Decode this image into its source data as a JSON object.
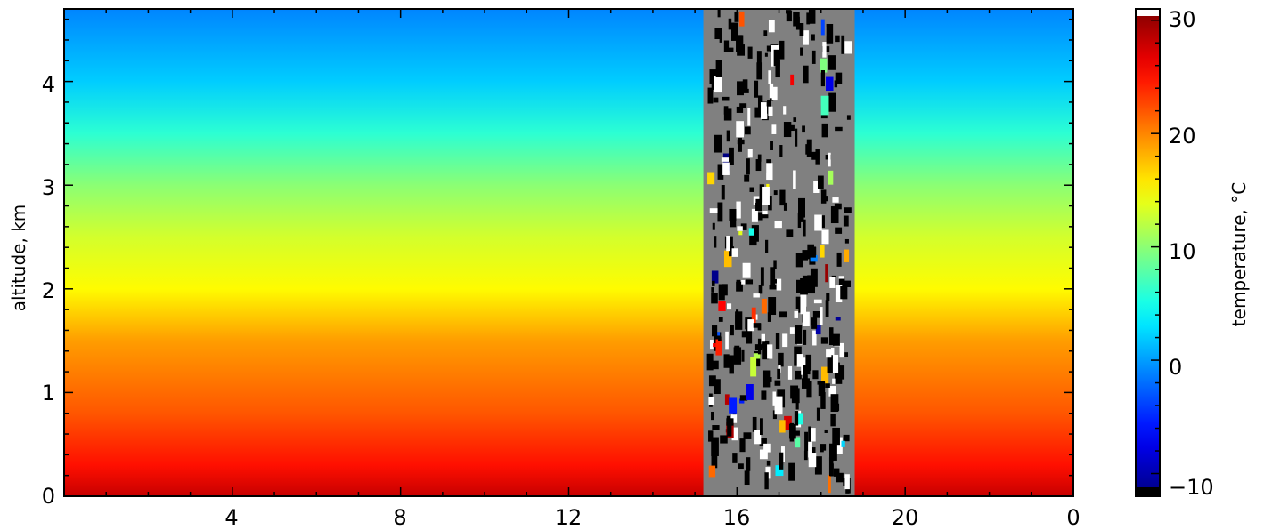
{
  "chart_data": {
    "type": "heatmap",
    "title": "",
    "xlabel": "",
    "ylabel": "altitude, km",
    "x_ticks": [
      "4",
      "8",
      "12",
      "16",
      "20",
      "0"
    ],
    "y_ticks": [
      "0",
      "1",
      "2",
      "3",
      "4"
    ],
    "xlim": [
      0,
      24
    ],
    "ylim": [
      0,
      4.7
    ],
    "missing_data_x_range": [
      15.2,
      18.8
    ],
    "missing_data_color": "#808080",
    "temperature_profile": [
      {
        "altitude_km": 0.0,
        "temperature_c": 28
      },
      {
        "altitude_km": 0.3,
        "temperature_c": 25
      },
      {
        "altitude_km": 0.8,
        "temperature_c": 22
      },
      {
        "altitude_km": 1.5,
        "temperature_c": 19
      },
      {
        "altitude_km": 2.0,
        "temperature_c": 15
      },
      {
        "altitude_km": 2.5,
        "temperature_c": 13
      },
      {
        "altitude_km": 3.0,
        "temperature_c": 10
      },
      {
        "altitude_km": 3.5,
        "temperature_c": 6
      },
      {
        "altitude_km": 4.0,
        "temperature_c": 2
      },
      {
        "altitude_km": 4.7,
        "temperature_c": -1
      }
    ],
    "colorbar": {
      "label": "temperature, °C",
      "ticks": [
        "30",
        "20",
        "10",
        "0",
        "−10"
      ],
      "range": [
        -12,
        31
      ],
      "colormap": "jet"
    }
  }
}
